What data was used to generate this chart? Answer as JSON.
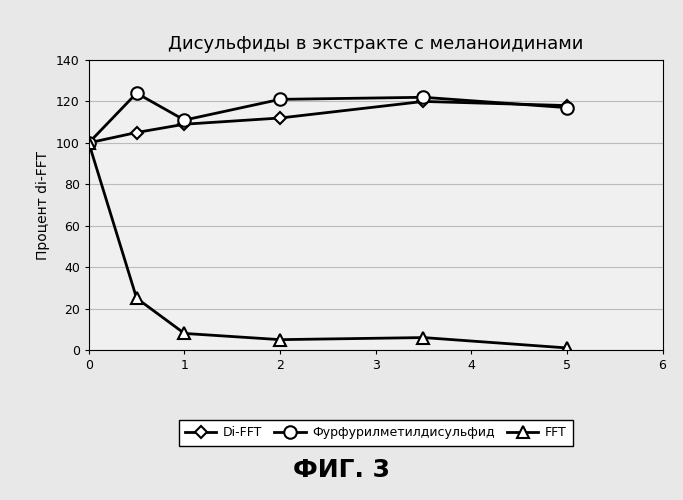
{
  "title": "Дисульфиды в экстракте с меланоидинами",
  "ylabel": "Процент di-FFT",
  "xlim": [
    0,
    6
  ],
  "ylim": [
    0,
    140
  ],
  "xticks": [
    0,
    1,
    2,
    3,
    4,
    5,
    6
  ],
  "yticks": [
    0,
    20,
    40,
    60,
    80,
    100,
    120,
    140
  ],
  "fig_caption": "ФИГ. 3",
  "series": [
    {
      "label": "Di-FFT",
      "x": [
        0,
        0.5,
        1,
        2,
        3.5,
        5
      ],
      "y": [
        100,
        105,
        109,
        112,
        120,
        118
      ],
      "color": "black",
      "marker": "D",
      "markersize": 6,
      "linewidth": 2.0,
      "markerfacecolor": "white",
      "markeredgecolor": "black"
    },
    {
      "label": "Фурфурилметилдисульфид",
      "x": [
        0,
        0.5,
        1,
        2,
        3.5,
        5
      ],
      "y": [
        100,
        124,
        111,
        121,
        122,
        117
      ],
      "color": "black",
      "marker": "o",
      "markersize": 9,
      "linewidth": 2.0,
      "markerfacecolor": "white",
      "markeredgecolor": "black"
    },
    {
      "label": "FFT",
      "x": [
        0,
        0.5,
        1,
        2,
        3.5,
        5
      ],
      "y": [
        100,
        25,
        8,
        5,
        6,
        1
      ],
      "color": "black",
      "marker": "^",
      "markersize": 8,
      "linewidth": 2.0,
      "markerfacecolor": "white",
      "markeredgecolor": "black"
    }
  ],
  "background_color": "#e8e8e8",
  "plot_bg_color": "#f0f0f0",
  "grid_color": "#bbbbbb",
  "title_fontsize": 13,
  "axis_label_fontsize": 10,
  "tick_fontsize": 9,
  "legend_fontsize": 9,
  "caption_fontsize": 18
}
